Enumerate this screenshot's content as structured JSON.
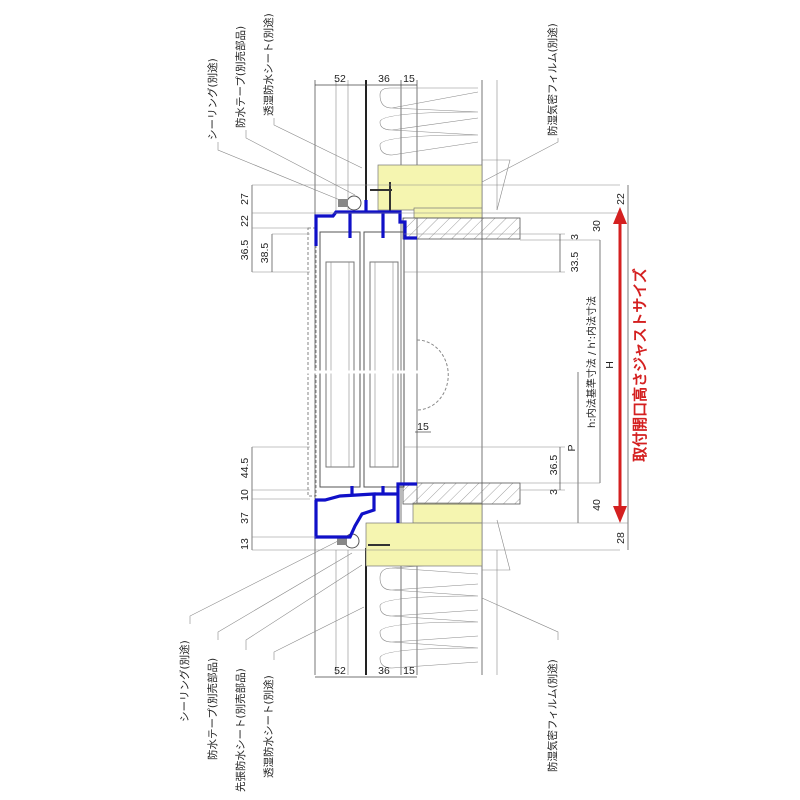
{
  "labels": {
    "top": {
      "sealing": "シーリング(別途)",
      "waterproof_tape": "防水テープ(別売部品)",
      "breathable_sheet": "透湿防水シート(別途)",
      "vapor_film": "防湿気密フィルム(別途)"
    },
    "bottom": {
      "sealing": "シーリング(別途)",
      "waterproof_tape": "防水テープ(別売部品)",
      "pre_sheet": "先張防水シート(別売部品)",
      "breathable_sheet": "透湿防水シート(別途)",
      "vapor_film": "防湿気密フィルム(別途)"
    }
  },
  "dims": {
    "top_52": "52",
    "top_36": "36",
    "top_15": "15",
    "bot_52": "52",
    "bot_36": "36",
    "bot_15": "15",
    "l_27": "27",
    "l_22": "22",
    "l_36_5": "36.5",
    "l_38_5": "38.5",
    "l_44_5": "44.5",
    "l_10": "10",
    "l_37": "37",
    "l_13": "13",
    "mid_15": "15",
    "r_22": "22",
    "r_30": "30",
    "r_3a": "3",
    "r_33_5": "33.5",
    "r_H": "H",
    "r_h": "h:内法基準寸法 / h':内法寸法",
    "r_P": "P",
    "r_36_5": "36.5",
    "r_3b": "3",
    "r_40": "40",
    "r_28": "28"
  },
  "callout": "取付開口高さジャストサイズ",
  "colors": {
    "frame": "#1010c8",
    "wood": "#f5f5b0",
    "callout": "#d42020"
  }
}
